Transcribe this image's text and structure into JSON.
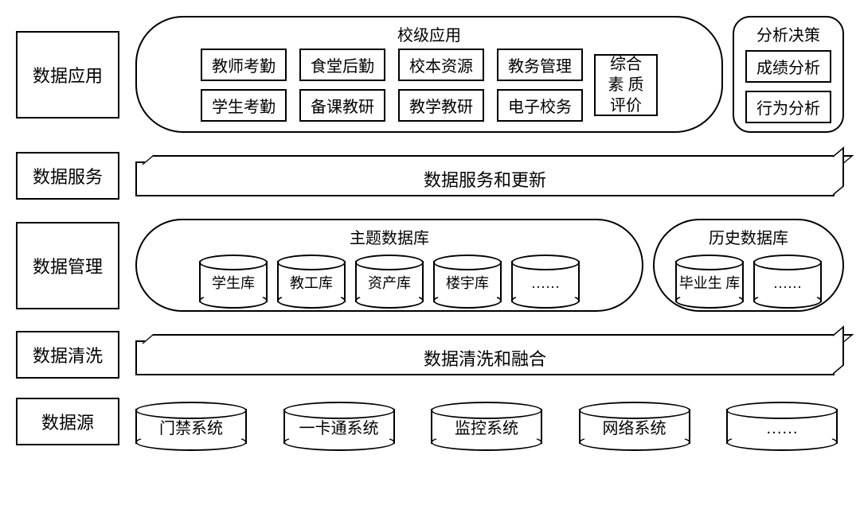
{
  "layers": {
    "application": {
      "label": "数据应用",
      "school": {
        "title": "校级应用",
        "grid": [
          "教师考勤",
          "食堂后勤",
          "校本资源",
          "教务管理",
          "学生考勤",
          "备课教研",
          "教学教研",
          "电子校务"
        ],
        "tall": "综合素\n质评价"
      },
      "analysis": {
        "title": "分析决策",
        "items": [
          "成绩分析",
          "行为分析"
        ]
      }
    },
    "service": {
      "label": "数据服务",
      "bar": "数据服务和更新"
    },
    "management": {
      "label": "数据管理",
      "topic": {
        "title": "主题数据库",
        "dbs": [
          "学生库",
          "教工库",
          "资产库",
          "楼宇库",
          "……"
        ]
      },
      "history": {
        "title": "历史数据库",
        "dbs": [
          "毕业生\n库",
          "……"
        ]
      }
    },
    "cleaning": {
      "label": "数据清洗",
      "bar": "数据清洗和融合"
    },
    "source": {
      "label": "数据源",
      "dbs": [
        "门禁系统",
        "一卡通系统",
        "监控系统",
        "网络系统",
        "……"
      ]
    }
  },
  "style": {
    "border_color": "#000000",
    "background": "#ffffff",
    "label_fontsize": 22,
    "box_fontsize": 20,
    "cyl_fontsize": 18
  }
}
